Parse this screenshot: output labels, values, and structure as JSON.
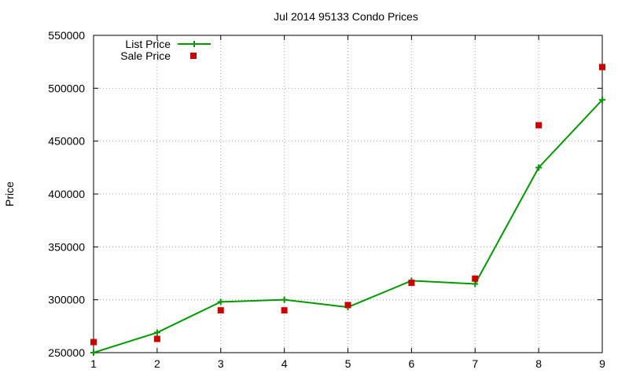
{
  "chart_data": {
    "type": "line",
    "title": "Jul 2014 95133 Condo Prices",
    "xlabel": "",
    "ylabel": "Price",
    "x": [
      1,
      2,
      3,
      4,
      5,
      6,
      7,
      8,
      9
    ],
    "xlim": [
      1,
      9
    ],
    "ylim": [
      250000,
      550000
    ],
    "xticks": [
      "1",
      "2",
      "3",
      "4",
      "5",
      "6",
      "7",
      "8",
      "9"
    ],
    "yticks": [
      "250000",
      "300000",
      "350000",
      "400000",
      "450000",
      "500000",
      "550000"
    ],
    "grid": true,
    "legend_position": "top-left",
    "series": [
      {
        "name": "List Price",
        "kind": "line+cross",
        "color": "#009900",
        "values": [
          250000,
          269000,
          298000,
          300000,
          293000,
          318000,
          315000,
          425000,
          489000
        ]
      },
      {
        "name": "Sale Price",
        "kind": "square",
        "color": "#cc0000",
        "values": [
          260000,
          263000,
          290000,
          290000,
          295000,
          316000,
          320000,
          465000,
          520000
        ]
      }
    ]
  }
}
